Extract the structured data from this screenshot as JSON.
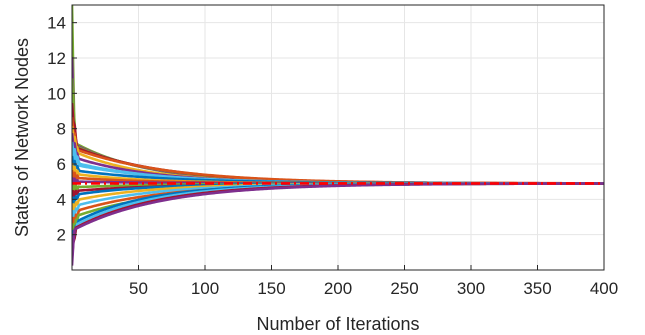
{
  "chart_data": {
    "type": "line",
    "title": "",
    "xlabel": "Number of Iterations",
    "ylabel": "States of Network Nodes",
    "xlim": [
      0,
      400
    ],
    "ylim": [
      0,
      15
    ],
    "xticks": [
      50,
      100,
      150,
      200,
      250,
      300,
      350,
      400
    ],
    "yticks": [
      2,
      4,
      6,
      8,
      10,
      12,
      14
    ],
    "grid": true,
    "legend": "none",
    "consensus_value": 4.9,
    "colors": [
      "#0072BD",
      "#D95319",
      "#EDB120",
      "#7E2F8E",
      "#77AC30",
      "#4DBEEE",
      "#A2142F"
    ],
    "consensus_line_color": "#FF0000",
    "series": [
      {
        "initial": 14.8,
        "peak_iter": 2,
        "plateau": 7.2,
        "color_index": 4
      },
      {
        "initial": 11.8,
        "peak_iter": 2,
        "plateau": 7.1,
        "color_index": 3
      },
      {
        "initial": 10.6,
        "peak_iter": 3,
        "plateau": 7.0,
        "color_index": 4
      },
      {
        "initial": 9.2,
        "peak_iter": 4,
        "plateau": 6.9,
        "color_index": 6
      },
      {
        "initial": 8.4,
        "peak_iter": 4,
        "plateau": 6.8,
        "color_index": 1
      },
      {
        "initial": 7.9,
        "peak_iter": 5,
        "plateau": 6.6,
        "color_index": 2
      },
      {
        "initial": 7.5,
        "peak_iter": 5,
        "plateau": 6.3,
        "color_index": 3
      },
      {
        "initial": 7.0,
        "peak_iter": 6,
        "plateau": 6.0,
        "color_index": 5
      },
      {
        "initial": 6.6,
        "peak_iter": 6,
        "plateau": 5.9,
        "color_index": 5
      },
      {
        "initial": 6.2,
        "peak_iter": 6,
        "plateau": 5.6,
        "color_index": 0
      },
      {
        "initial": 5.8,
        "peak_iter": 6,
        "plateau": 5.4,
        "color_index": 2
      },
      {
        "initial": 5.4,
        "peak_iter": 6,
        "plateau": 5.2,
        "color_index": 1
      },
      {
        "initial": 5.0,
        "peak_iter": 6,
        "plateau": 5.0,
        "color_index": 3
      },
      {
        "initial": 4.6,
        "peak_iter": 6,
        "plateau": 4.7,
        "color_index": 4
      },
      {
        "initial": 4.2,
        "peak_iter": 6,
        "plateau": 4.5,
        "color_index": 6
      },
      {
        "initial": 3.8,
        "peak_iter": 6,
        "plateau": 4.3,
        "color_index": 0
      },
      {
        "initial": 3.4,
        "peak_iter": 6,
        "plateau": 4.0,
        "color_index": 2
      },
      {
        "initial": 3.0,
        "peak_iter": 6,
        "plateau": 3.7,
        "color_index": 5
      },
      {
        "initial": 2.6,
        "peak_iter": 6,
        "plateau": 3.4,
        "color_index": 1
      },
      {
        "initial": 2.2,
        "peak_iter": 5,
        "plateau": 3.1,
        "color_index": 4
      },
      {
        "initial": 1.8,
        "peak_iter": 5,
        "plateau": 2.8,
        "color_index": 0
      },
      {
        "initial": 1.3,
        "peak_iter": 4,
        "plateau": 2.6,
        "color_index": 5
      },
      {
        "initial": 0.9,
        "peak_iter": 3,
        "plateau": 2.4,
        "color_index": 6
      },
      {
        "initial": 0.5,
        "peak_iter": 2,
        "plateau": 2.3,
        "color_index": 3
      }
    ]
  }
}
